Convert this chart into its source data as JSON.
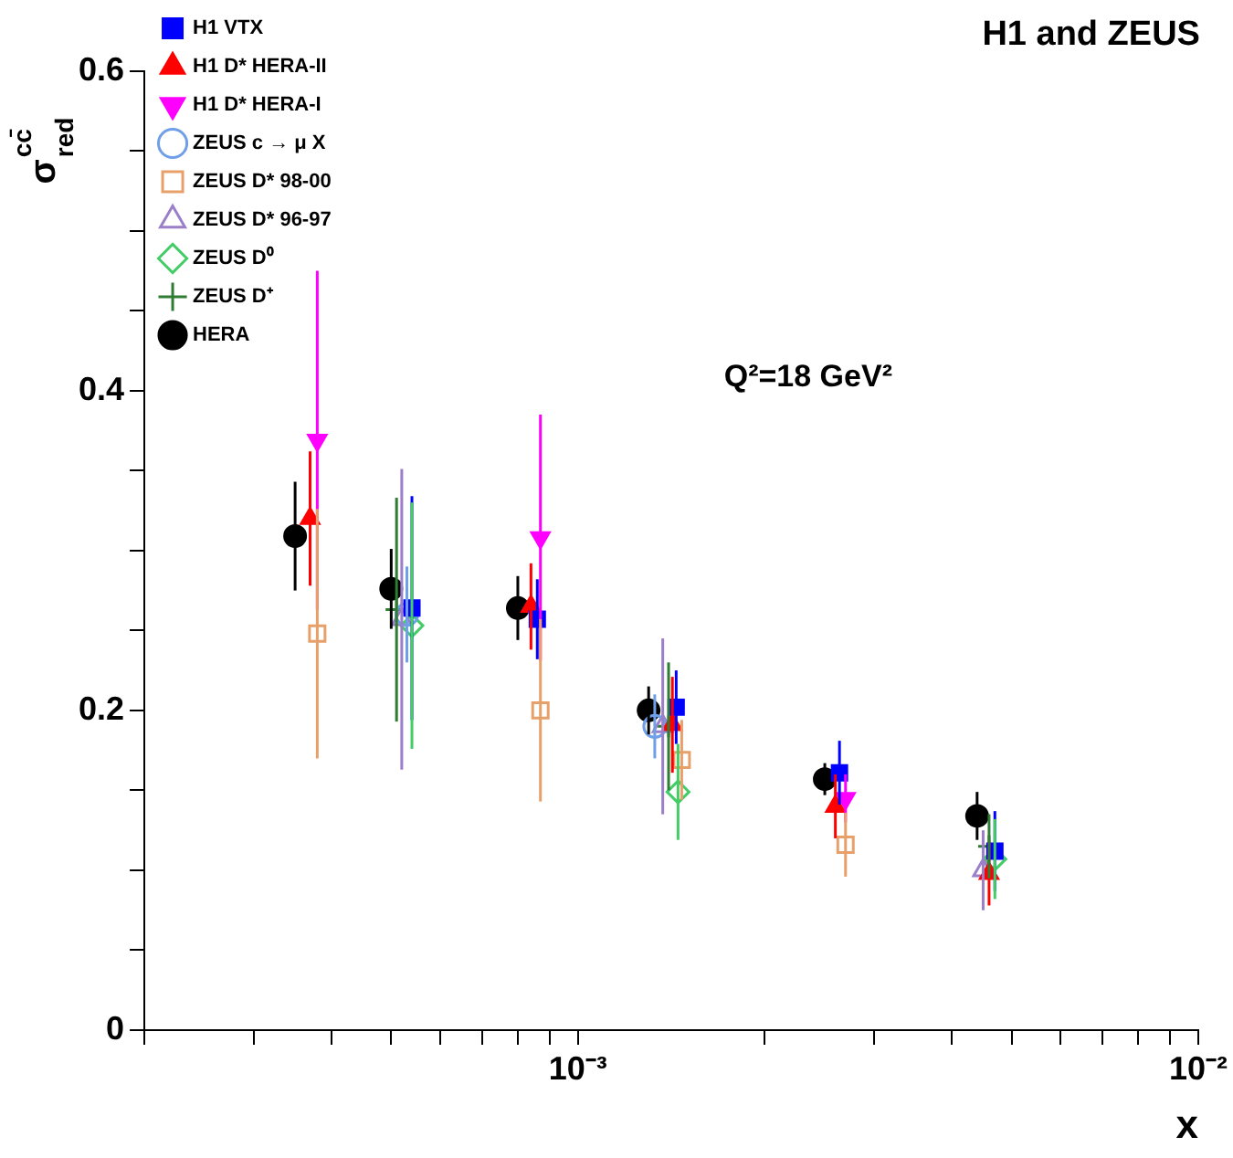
{
  "chart_data": {
    "type": "scatter",
    "title": "H1 and ZEUS",
    "xlabel": "x",
    "ylabel": "σ$_{red}$$^{cc̄}$",
    "annotations": [
      "Q²=18 GeV²"
    ],
    "log": "x",
    "grid": false,
    "legend": "top left",
    "xlim": [
      0.0002,
      0.01
    ],
    "ylim": [
      0,
      0.6
    ],
    "xticks": [
      {
        "value": 0.0002,
        "label": null
      },
      {
        "value": 0.0003,
        "label": null
      },
      {
        "value": 0.0004,
        "label": null
      },
      {
        "value": 0.0005,
        "label": null
      },
      {
        "value": 0.0006,
        "label": null
      },
      {
        "value": 0.0007,
        "label": null
      },
      {
        "value": 0.0008,
        "label": null
      },
      {
        "value": 0.0009,
        "label": null
      },
      {
        "value": 0.001,
        "label": "10⁻³"
      },
      {
        "value": 0.002,
        "label": null
      },
      {
        "value": 0.003,
        "label": null
      },
      {
        "value": 0.004,
        "label": null
      },
      {
        "value": 0.005,
        "label": null
      },
      {
        "value": 0.006,
        "label": null
      },
      {
        "value": 0.007,
        "label": null
      },
      {
        "value": 0.008,
        "label": null
      },
      {
        "value": 0.009,
        "label": null
      },
      {
        "value": 0.01,
        "label": "10⁻²"
      }
    ],
    "yticks": [
      0,
      {
        "value": 0.05,
        "label": null
      },
      {
        "value": 0.1,
        "label": null
      },
      {
        "value": 0.15,
        "label": null
      },
      0.2,
      {
        "value": 0.25,
        "label": null
      },
      {
        "value": 0.3,
        "label": null
      },
      {
        "value": 0.35,
        "label": null
      },
      0.4,
      {
        "value": 0.45,
        "label": null
      },
      {
        "value": 0.5,
        "label": null
      },
      {
        "value": 0.55,
        "label": null
      },
      0.6
    ],
    "series": [
      {
        "name": "H1 VTX",
        "color": "#0000ff",
        "marker": "square",
        "x": [
          0.00054,
          0.00086,
          0.00144,
          0.00264,
          0.0047
        ],
        "values": [
          0.264,
          0.257,
          0.202,
          0.161,
          0.112
        ],
        "errors": [
          0.07,
          0.025,
          0.023,
          0.02,
          0.025
        ]
      },
      {
        "name": "H1 D* HERA-II",
        "color": "#ff0000",
        "marker": "triangle",
        "x": [
          0.00037,
          0.00084,
          0.00142,
          0.0026,
          0.0046
        ],
        "values": [
          0.32,
          0.265,
          0.191,
          0.14,
          0.098
        ],
        "errors": [
          0.042,
          0.027,
          0.03,
          0.02,
          0.02
        ]
      },
      {
        "name": "H1 D* HERA-I",
        "color": "#ff00ff",
        "marker": "triangle-down",
        "x": [
          0.00038,
          0.00087,
          0.0027
        ],
        "values": [
          0.369,
          0.308,
          0.145
        ],
        "errors": [
          0.106,
          0.077,
          0.015
        ]
      },
      {
        "name": "ZEUS c → μ X",
        "color": "#6f9fe8",
        "marker": "circle-open",
        "x": [
          0.00053,
          0.00133
        ],
        "values": [
          0.26,
          0.19
        ],
        "errors": [
          0.03,
          0.02
        ]
      },
      {
        "name": "ZEUS D* 98-00",
        "color": "#e8a06a",
        "marker": "square-open",
        "x": [
          0.00038,
          0.00087,
          0.00147,
          0.0027
        ],
        "values": [
          0.248,
          0.2,
          0.169,
          0.116
        ],
        "errors": [
          0.078,
          0.057,
          0.025,
          0.02
        ]
      },
      {
        "name": "ZEUS D* 96-97",
        "color": "#9b7fc8",
        "marker": "triangle-open",
        "x": [
          0.00052,
          0.00137,
          0.0045
        ],
        "values": [
          0.257,
          0.19,
          0.1
        ],
        "errors": [
          0.094,
          0.055,
          0.025
        ]
      },
      {
        "name": "ZEUS D⁰",
        "color": "#44cc66",
        "marker": "diamond-open",
        "x": [
          0.00054,
          0.00145,
          0.0047
        ],
        "values": [
          0.253,
          0.149,
          0.107
        ],
        "errors": [
          0.077,
          0.03,
          0.025
        ]
      },
      {
        "name": "ZEUS D⁺",
        "color": "#2e7d32",
        "marker": "cross-open",
        "x": [
          0.00051,
          0.0014,
          0.0046
        ],
        "values": [
          0.263,
          0.19,
          0.115
        ],
        "errors": [
          0.07,
          0.04,
          0.02
        ]
      },
      {
        "name": "HERA",
        "color": "#000000",
        "marker": "circle",
        "x": [
          0.00035,
          0.0005,
          0.0008,
          0.0013,
          0.0025,
          0.0044
        ],
        "values": [
          0.309,
          0.276,
          0.264,
          0.2,
          0.157,
          0.134
        ],
        "errors": [
          0.034,
          0.025,
          0.02,
          0.015,
          0.01,
          0.015
        ]
      }
    ]
  }
}
